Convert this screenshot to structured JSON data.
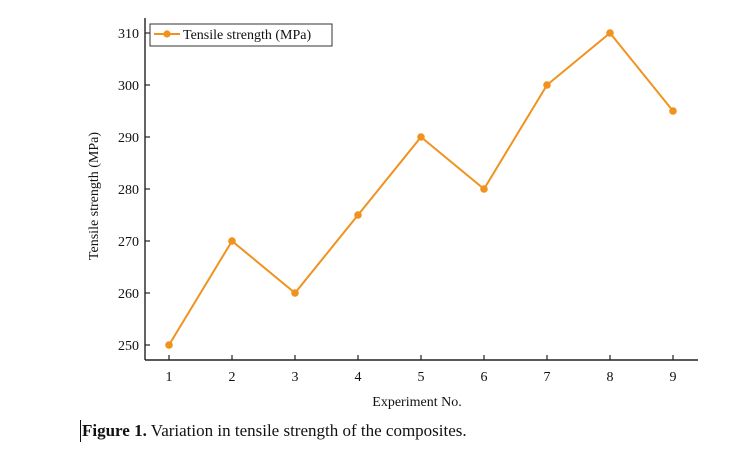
{
  "chart_data": {
    "type": "line",
    "x": [
      1,
      2,
      3,
      4,
      5,
      6,
      7,
      8,
      9
    ],
    "series": [
      {
        "name": "Tensile strength (MPa)",
        "values": [
          250,
          270,
          260,
          275,
          290,
          280,
          300,
          310,
          295
        ],
        "color": "#f0921e"
      }
    ],
    "xlabel": "Experiment No.",
    "ylabel": "Tensile strength (MPa)",
    "x_ticks": [
      "1",
      "2",
      "3",
      "4",
      "5",
      "6",
      "7",
      "8",
      "9"
    ],
    "y_ticks": [
      "250",
      "260",
      "270",
      "280",
      "290",
      "300",
      "310"
    ],
    "xlim": [
      1,
      9
    ],
    "ylim": [
      250,
      310
    ],
    "grid": false,
    "legend_position": "top-left"
  },
  "caption": {
    "label": "Figure 1.",
    "text": " Variation in tensile strength of the composites."
  }
}
